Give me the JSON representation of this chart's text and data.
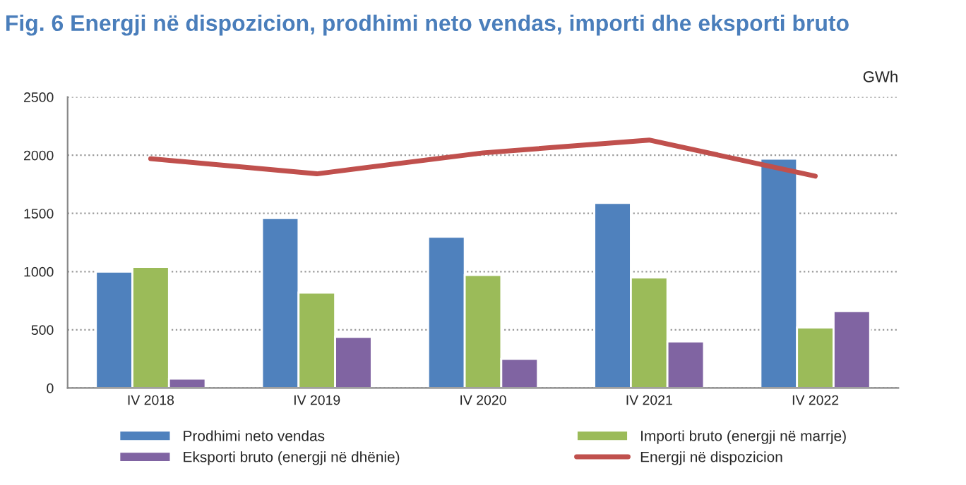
{
  "chart_data": {
    "type": "bar",
    "title": "Fig. 6 Energji në dispozicion, prodhimi neto vendas, importi dhe eksporti bruto",
    "ylabel": "GWh",
    "categories": [
      "IV 2018",
      "IV 2019",
      "IV 2020",
      "IV 2021",
      "IV 2022"
    ],
    "series": [
      {
        "name": "Prodhimi neto vendas",
        "color": "#4f81bd",
        "values": [
          1000,
          1460,
          1300,
          1590,
          1970
        ]
      },
      {
        "name": "Importi bruto (energji në marrje)",
        "color": "#9bbb59",
        "values": [
          1040,
          820,
          970,
          950,
          520
        ]
      },
      {
        "name": "Eksporti bruto (energji në dhënie)",
        "color": "#8064a2",
        "values": [
          80,
          440,
          250,
          400,
          660
        ]
      },
      {
        "name": "Energji në dispozicion",
        "color": "#c0504d",
        "type": "line",
        "values": [
          1970,
          1840,
          2020,
          2130,
          1820
        ]
      }
    ],
    "ylim": [
      0,
      2500
    ],
    "yticks": [
      0,
      500,
      1000,
      1500,
      2000,
      2500
    ],
    "grid": "y",
    "legend": "bottom"
  }
}
